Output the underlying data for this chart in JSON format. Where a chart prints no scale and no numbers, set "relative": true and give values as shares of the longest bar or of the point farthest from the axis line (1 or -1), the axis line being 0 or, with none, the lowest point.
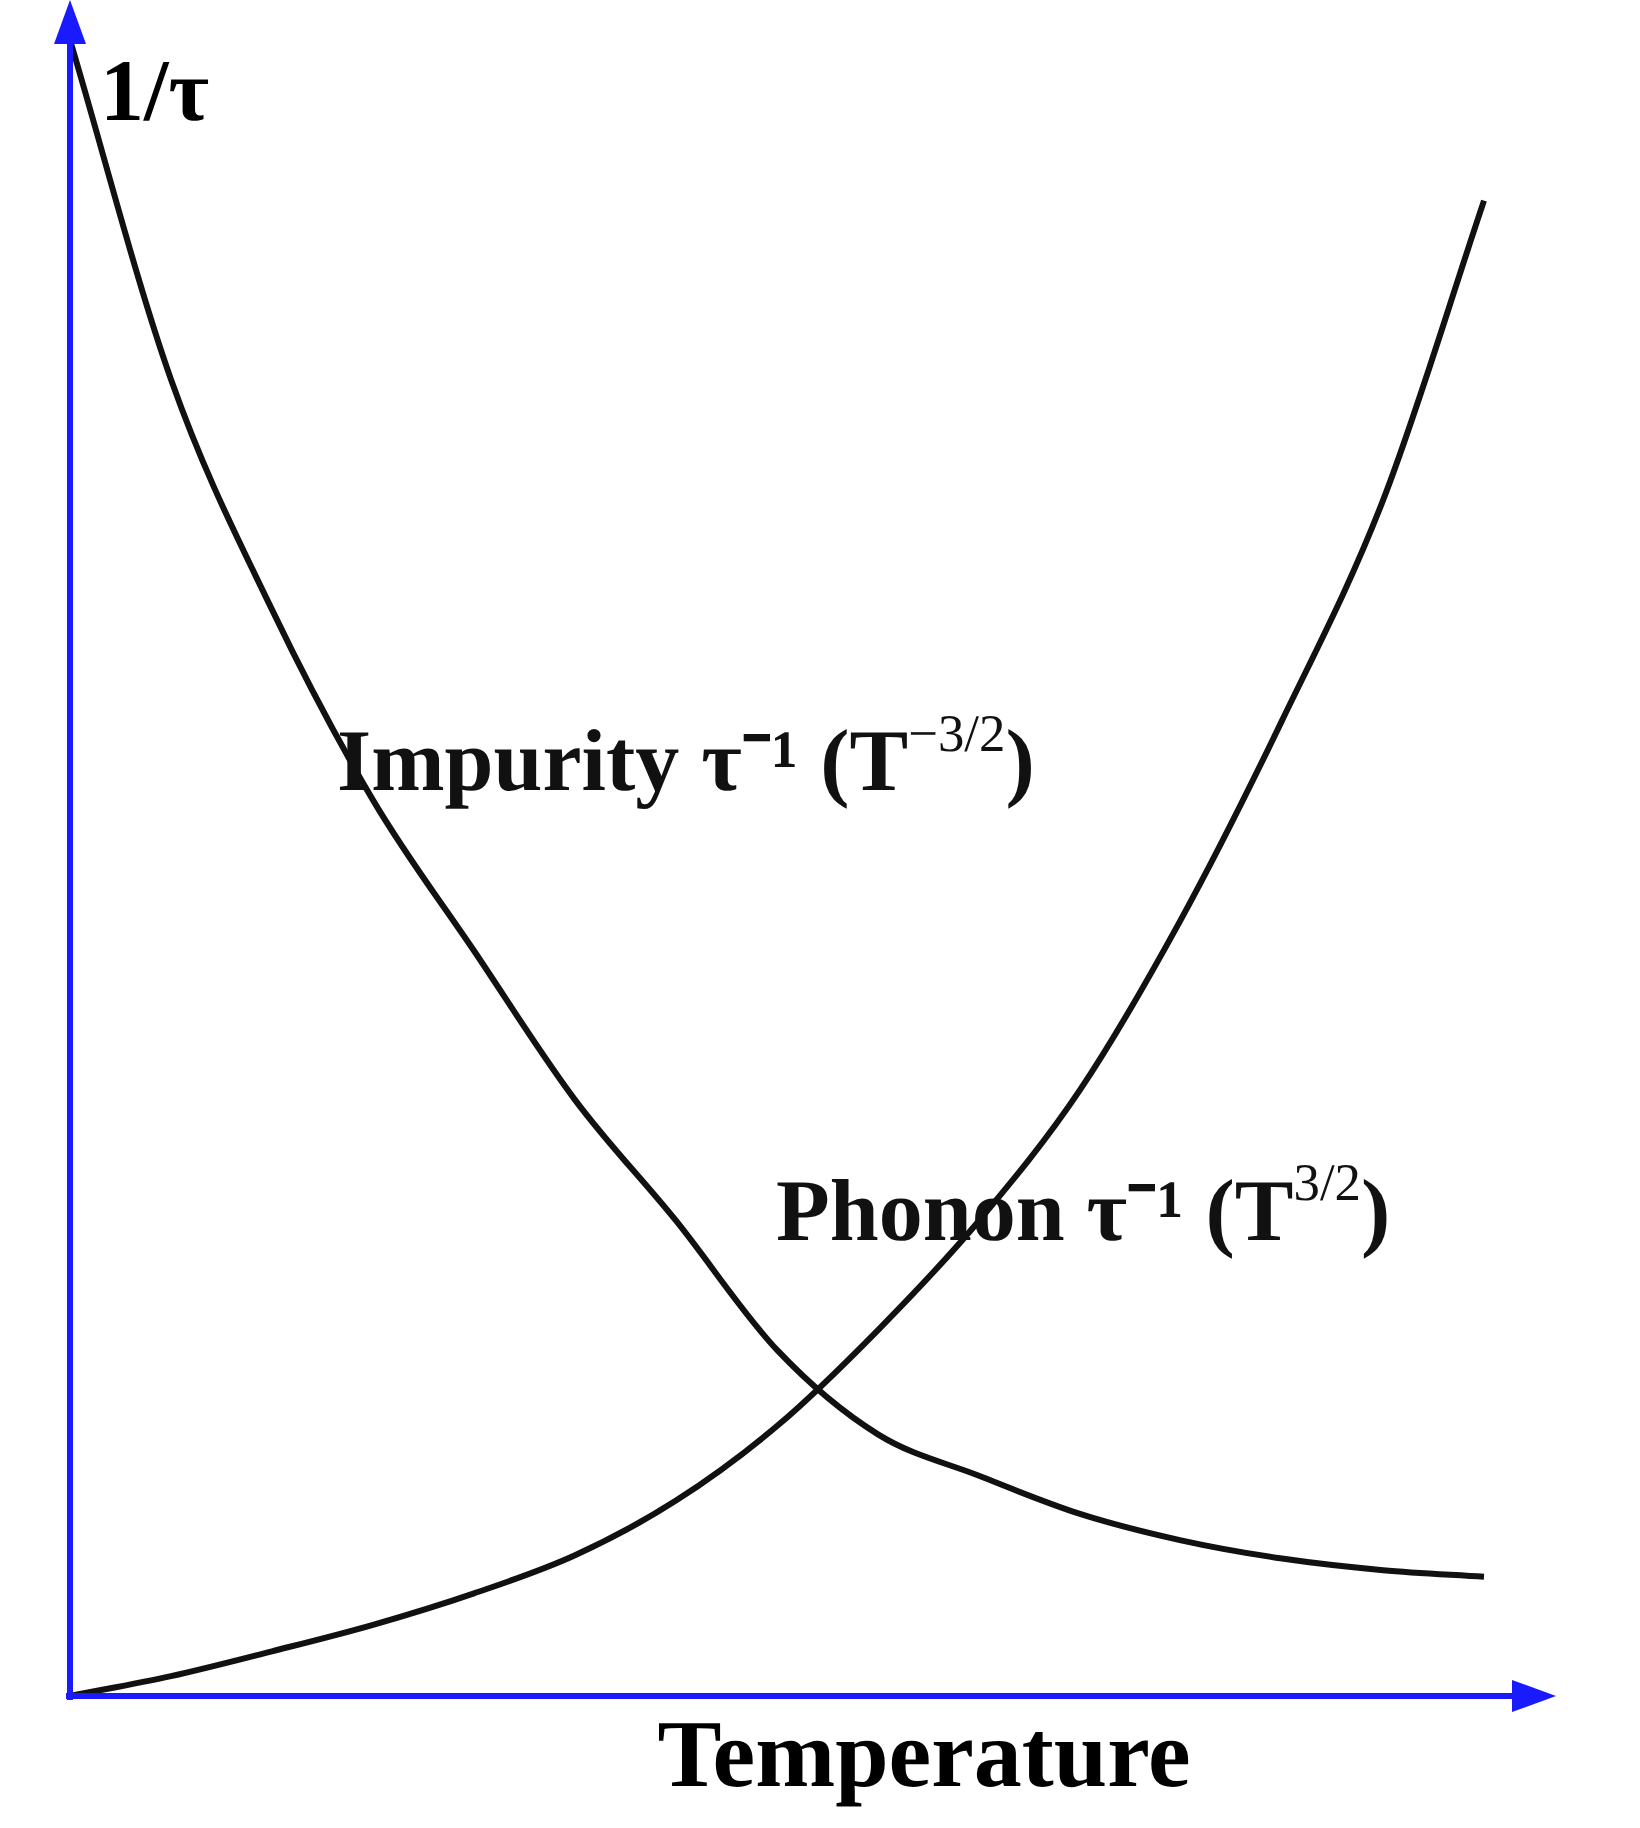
{
  "chart_data": {
    "type": "line",
    "relative": true,
    "xlabel": "Temperature",
    "ylabel": "1/τ",
    "legend": false,
    "categories": [
      null,
      null,
      null,
      null,
      null,
      null,
      null,
      null,
      null,
      null,
      null,
      null,
      null,
      null,
      null
    ],
    "series": [
      {
        "name": "Impurity τ⁻¹ (T$^{−3/2}$)",
        "color": "#111111",
        "values": [
          1,
          0.795,
          0.656,
          0.541,
          0.45,
          0.36,
          0.287,
          0.209,
          0.158,
          0.133,
          0.11,
          0.094,
          0.083,
          0.076,
          0.072
        ]
      },
      {
        "name": "Phonon τ⁻¹ (T$^{3/2}$)",
        "color": "#111111",
        "values": [
          0,
          0.012,
          0.027,
          0.043,
          0.062,
          0.085,
          0.118,
          0.163,
          0.221,
          0.287,
          0.366,
          0.469,
          0.589,
          0.722,
          0.903
        ]
      }
    ]
  }
}
